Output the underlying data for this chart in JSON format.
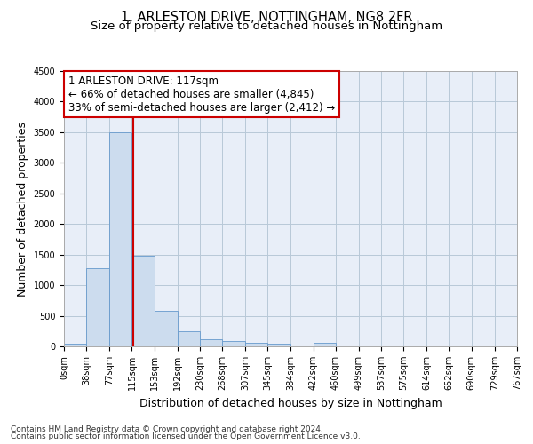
{
  "title": "1, ARLESTON DRIVE, NOTTINGHAM, NG8 2FR",
  "subtitle": "Size of property relative to detached houses in Nottingham",
  "xlabel": "Distribution of detached houses by size in Nottingham",
  "ylabel": "Number of detached properties",
  "bar_color": "#ccdcee",
  "bar_edge_color": "#6699cc",
  "grid_color": "#b8c8d8",
  "background_color": "#e8eef8",
  "bin_edges": [
    0,
    38,
    77,
    115,
    153,
    192,
    230,
    268,
    307,
    345,
    384,
    422,
    460,
    499,
    537,
    575,
    614,
    652,
    690,
    729,
    767
  ],
  "bar_heights": [
    50,
    1280,
    3500,
    1480,
    580,
    240,
    115,
    80,
    55,
    50,
    0,
    55,
    0,
    0,
    0,
    0,
    0,
    0,
    0,
    0
  ],
  "property_size": 117,
  "red_line_color": "#cc0000",
  "annotation_line1": "1 ARLESTON DRIVE: 117sqm",
  "annotation_line2": "← 66% of detached houses are smaller (4,845)",
  "annotation_line3": "33% of semi-detached houses are larger (2,412) →",
  "annotation_box_color": "#ffffff",
  "annotation_box_edge_color": "#cc0000",
  "ylim": [
    0,
    4500
  ],
  "yticks": [
    0,
    500,
    1000,
    1500,
    2000,
    2500,
    3000,
    3500,
    4000,
    4500
  ],
  "footnote1": "Contains HM Land Registry data © Crown copyright and database right 2024.",
  "footnote2": "Contains public sector information licensed under the Open Government Licence v3.0.",
  "title_fontsize": 10.5,
  "subtitle_fontsize": 9.5,
  "axis_label_fontsize": 9,
  "tick_fontsize": 7,
  "annotation_fontsize": 8.5,
  "footnote_fontsize": 6.5
}
